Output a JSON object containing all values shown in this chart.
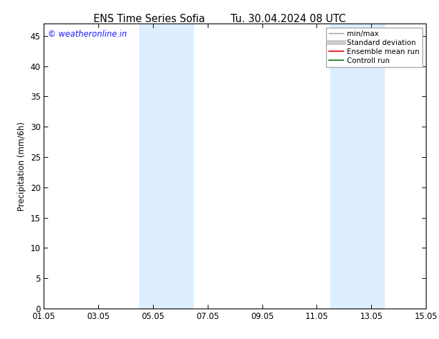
{
  "title_left": "ENS Time Series Sofia",
  "title_right": "Tu. 30.04.2024 08 UTC",
  "ylabel": "Precipitation (mm/6h)",
  "watermark": "© weatheronline.in",
  "watermark_color": "#1a1aff",
  "xtick_labels": [
    "01.05",
    "03.05",
    "05.05",
    "07.05",
    "09.05",
    "11.05",
    "13.05",
    "15.05"
  ],
  "xtick_positions": [
    0,
    2,
    4,
    6,
    8,
    10,
    12,
    14
  ],
  "ylim": [
    0,
    47
  ],
  "ytick_positions": [
    0,
    5,
    10,
    15,
    20,
    25,
    30,
    35,
    40,
    45
  ],
  "ytick_labels": [
    "0",
    "5",
    "10",
    "15",
    "20",
    "25",
    "30",
    "35",
    "40",
    "45"
  ],
  "shaded_regions": [
    {
      "x_start": 3.5,
      "x_end": 5.5,
      "color": "#ddeeff"
    },
    {
      "x_start": 10.5,
      "x_end": 12.5,
      "color": "#ddeeff"
    }
  ],
  "legend_entries": [
    {
      "label": "min/max",
      "color": "#999999",
      "lw": 1.0,
      "linestyle": "-"
    },
    {
      "label": "Standard deviation",
      "color": "#cccccc",
      "lw": 5,
      "linestyle": "-"
    },
    {
      "label": "Ensemble mean run",
      "color": "#dd0000",
      "lw": 1.2,
      "linestyle": "-"
    },
    {
      "label": "Controll run",
      "color": "#007700",
      "lw": 1.2,
      "linestyle": "-"
    }
  ],
  "background_color": "#ffffff",
  "plot_bg_color": "#ffffff",
  "title_fontsize": 10.5,
  "axis_label_fontsize": 8.5,
  "tick_fontsize": 8.5,
  "legend_fontsize": 7.5,
  "watermark_fontsize": 8.5
}
